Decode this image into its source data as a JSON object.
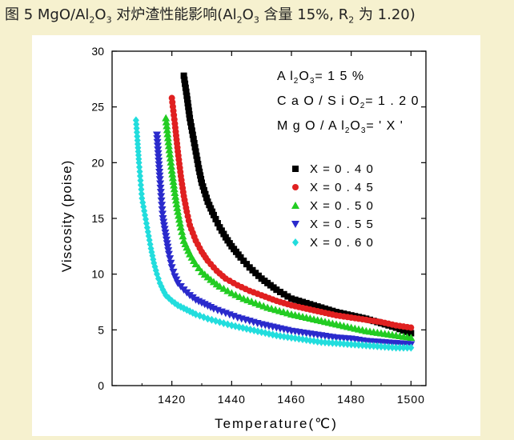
{
  "figure": {
    "title_prefix": "图 5 MgO/Al",
    "title_sub1": "2",
    "title_mid1": "O",
    "title_sub2": "3",
    "title_mid2": " 对炉渣性能影响(Al",
    "title_sub3": "2",
    "title_mid3": "O",
    "title_sub4": "3",
    "title_mid4": " 含量 15%, R",
    "title_sub5": "2",
    "title_end": " 为 1.20)"
  },
  "chart_data": {
    "type": "scatter",
    "xlabel": "Temperature(℃)",
    "ylabel": "Viscosity (poise)",
    "xlim": [
      1400,
      1505
    ],
    "ylim": [
      0,
      30
    ],
    "x_ticks": [
      1420,
      1440,
      1460,
      1480,
      1500
    ],
    "y_ticks": [
      0,
      5,
      10,
      15,
      20,
      25,
      30
    ],
    "grid": false,
    "legend_position": "upper-right",
    "annotations": [
      {
        "parts": [
          [
            "A l",
            ""
          ],
          [
            "2",
            "sub"
          ],
          [
            "O",
            ""
          ],
          [
            "3",
            "sub"
          ],
          [
            "= 1 5 %",
            ""
          ]
        ]
      },
      {
        "parts": [
          [
            "C a O / S i O",
            ""
          ],
          [
            "2",
            "sub"
          ],
          [
            "= 1 . 2 0",
            ""
          ]
        ]
      },
      {
        "parts": [
          [
            "M g O / A l",
            ""
          ],
          [
            "2",
            "sub"
          ],
          [
            "O",
            ""
          ],
          [
            "3",
            "sub"
          ],
          [
            "= ' X '",
            ""
          ]
        ]
      }
    ],
    "series": [
      {
        "name": "X = 0 . 4 0",
        "marker": "square",
        "color": "#000000",
        "start_x": 1424,
        "start_y": 27.8,
        "points": [
          [
            1424,
            27.8
          ],
          [
            1425,
            26
          ],
          [
            1426,
            24
          ],
          [
            1427,
            22.5
          ],
          [
            1428,
            21
          ],
          [
            1429,
            19.5
          ],
          [
            1430,
            18.2
          ],
          [
            1432,
            16.5
          ],
          [
            1434,
            15.3
          ],
          [
            1436,
            14.2
          ],
          [
            1438,
            13.3
          ],
          [
            1440,
            12.5
          ],
          [
            1443,
            11.5
          ],
          [
            1446,
            10.6
          ],
          [
            1450,
            9.6
          ],
          [
            1455,
            8.6
          ],
          [
            1460,
            7.8
          ],
          [
            1465,
            7.4
          ],
          [
            1470,
            7.0
          ],
          [
            1475,
            6.6
          ],
          [
            1480,
            6.3
          ],
          [
            1485,
            6.0
          ],
          [
            1490,
            5.6
          ],
          [
            1495,
            5.2
          ],
          [
            1500,
            4.7
          ]
        ]
      },
      {
        "name": "X = 0 . 4 5",
        "marker": "circle",
        "color": "#e02020",
        "start_x": 1420,
        "start_y": 25.8,
        "points": [
          [
            1420,
            25.8
          ],
          [
            1421,
            23.5
          ],
          [
            1422,
            21
          ],
          [
            1423,
            18.8
          ],
          [
            1424,
            17
          ],
          [
            1425,
            15.6
          ],
          [
            1426,
            14.4
          ],
          [
            1428,
            13
          ],
          [
            1430,
            12
          ],
          [
            1432,
            11.2
          ],
          [
            1435,
            10.3
          ],
          [
            1438,
            9.6
          ],
          [
            1442,
            9.0
          ],
          [
            1446,
            8.5
          ],
          [
            1450,
            8.1
          ],
          [
            1455,
            7.6
          ],
          [
            1460,
            7.2
          ],
          [
            1465,
            6.9
          ],
          [
            1470,
            6.6
          ],
          [
            1475,
            6.3
          ],
          [
            1480,
            6.1
          ],
          [
            1485,
            5.9
          ],
          [
            1490,
            5.7
          ],
          [
            1495,
            5.4
          ],
          [
            1500,
            5.2
          ]
        ]
      },
      {
        "name": "X = 0 . 5 0",
        "marker": "triangle-up",
        "color": "#22cc22",
        "start_x": 1418,
        "start_y": 24,
        "points": [
          [
            1418,
            24
          ],
          [
            1419,
            21.5
          ],
          [
            1420,
            19.3
          ],
          [
            1421,
            17.3
          ],
          [
            1422,
            15.6
          ],
          [
            1423,
            14.2
          ],
          [
            1424,
            13
          ],
          [
            1426,
            11.8
          ],
          [
            1428,
            10.9
          ],
          [
            1430,
            10.2
          ],
          [
            1433,
            9.5
          ],
          [
            1436,
            8.9
          ],
          [
            1440,
            8.3
          ],
          [
            1444,
            7.8
          ],
          [
            1448,
            7.4
          ],
          [
            1452,
            7.0
          ],
          [
            1456,
            6.7
          ],
          [
            1460,
            6.4
          ],
          [
            1465,
            6.1
          ],
          [
            1470,
            5.8
          ],
          [
            1475,
            5.5
          ],
          [
            1480,
            5.2
          ],
          [
            1485,
            4.9
          ],
          [
            1490,
            4.7
          ],
          [
            1495,
            4.5
          ],
          [
            1500,
            4.3
          ]
        ]
      },
      {
        "name": "X = 0 . 5 5",
        "marker": "triangle-down",
        "color": "#2a2acc",
        "start_x": 1415,
        "start_y": 22.5,
        "points": [
          [
            1415,
            22.5
          ],
          [
            1415.5,
            20.5
          ],
          [
            1416,
            18.5
          ],
          [
            1416.5,
            16.6
          ],
          [
            1417,
            15
          ],
          [
            1418,
            13.4
          ],
          [
            1419,
            11.8
          ],
          [
            1420,
            10.6
          ],
          [
            1421,
            9.8
          ],
          [
            1422,
            9.2
          ],
          [
            1424,
            8.6
          ],
          [
            1426,
            8.1
          ],
          [
            1428,
            7.7
          ],
          [
            1431,
            7.3
          ],
          [
            1434,
            6.9
          ],
          [
            1438,
            6.5
          ],
          [
            1442,
            6.1
          ],
          [
            1446,
            5.8
          ],
          [
            1450,
            5.5
          ],
          [
            1455,
            5.2
          ],
          [
            1460,
            4.9
          ],
          [
            1465,
            4.7
          ],
          [
            1470,
            4.5
          ],
          [
            1475,
            4.3
          ],
          [
            1480,
            4.2
          ],
          [
            1485,
            4.0
          ],
          [
            1490,
            3.9
          ],
          [
            1495,
            3.8
          ],
          [
            1500,
            3.7
          ]
        ]
      },
      {
        "name": "X = 0 . 6 0",
        "marker": "diamond",
        "color": "#22dddd",
        "start_x": 1408,
        "start_y": 23.8,
        "points": [
          [
            1408,
            23.8
          ],
          [
            1408.5,
            22
          ],
          [
            1409,
            20
          ],
          [
            1409.5,
            18.4
          ],
          [
            1410,
            16.8
          ],
          [
            1411,
            15.3
          ],
          [
            1412,
            13.8
          ],
          [
            1413,
            12.3
          ],
          [
            1414,
            11
          ],
          [
            1415,
            10
          ],
          [
            1416,
            9.2
          ],
          [
            1417,
            8.6
          ],
          [
            1418,
            8.1
          ],
          [
            1420,
            7.6
          ],
          [
            1422,
            7.2
          ],
          [
            1425,
            6.8
          ],
          [
            1428,
            6.4
          ],
          [
            1432,
            6.0
          ],
          [
            1436,
            5.7
          ],
          [
            1440,
            5.4
          ],
          [
            1445,
            5.1
          ],
          [
            1450,
            4.8
          ],
          [
            1455,
            4.5
          ],
          [
            1460,
            4.3
          ],
          [
            1465,
            4.1
          ],
          [
            1470,
            3.9
          ],
          [
            1475,
            3.8
          ],
          [
            1480,
            3.7
          ],
          [
            1485,
            3.6
          ],
          [
            1490,
            3.5
          ],
          [
            1495,
            3.4
          ],
          [
            1500,
            3.4
          ]
        ]
      }
    ]
  }
}
